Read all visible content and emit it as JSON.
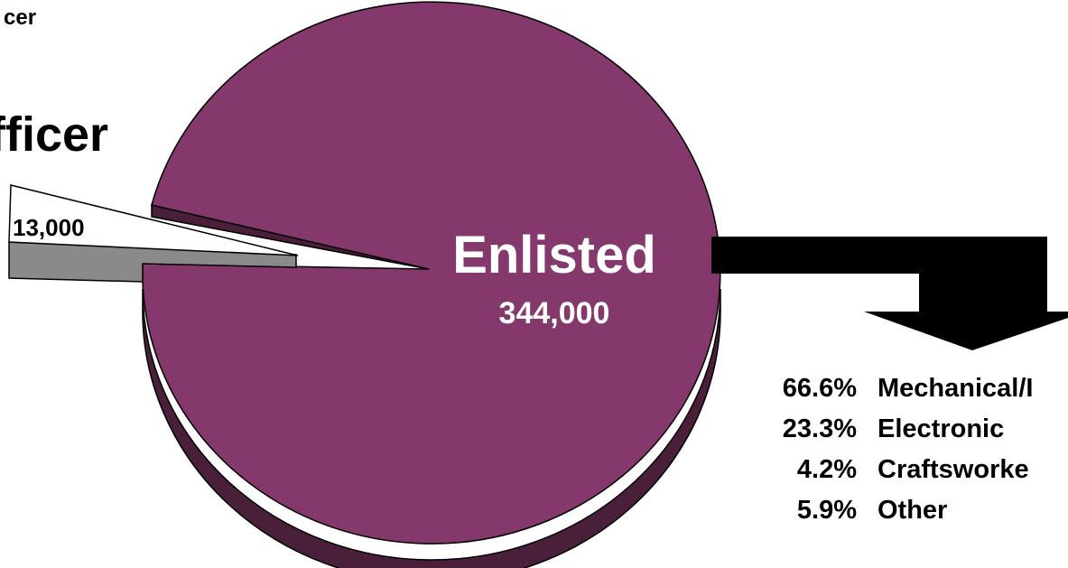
{
  "top_label": "cer",
  "chart_data": {
    "type": "pie",
    "slices": [
      {
        "name": "Enlisted",
        "value": 344000,
        "value_label": "344,000",
        "color": "#85386b"
      },
      {
        "name": "Officer",
        "value": 13000,
        "value_label": "13,000",
        "color": "#ffffff"
      }
    ],
    "officer_title": "fficer",
    "breakdown": [
      {
        "pct": "66.6%",
        "label": "Mechanical/I"
      },
      {
        "pct": "23.3%",
        "label": "Electronic"
      },
      {
        "pct": "4.2%",
        "label": "Craftsworke"
      },
      {
        "pct": "5.9%",
        "label": "Other"
      }
    ]
  },
  "colors": {
    "enlisted_top": "#85386b",
    "enlisted_side": "#4a1f3a",
    "officer_side": "#8a8a8a",
    "arrow": "#000000"
  }
}
